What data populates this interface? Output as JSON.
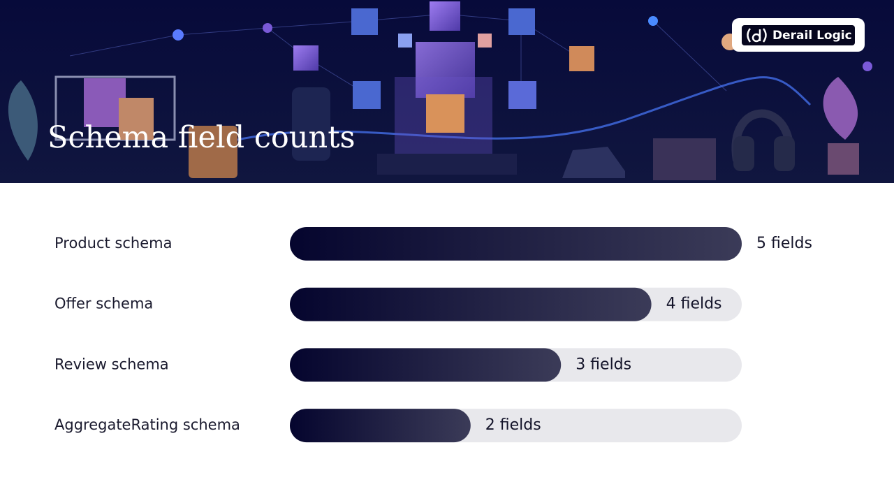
{
  "chart_data": {
    "type": "bar",
    "orientation": "horizontal",
    "title": "Schema field counts",
    "categories": [
      "Product schema",
      "Offer schema",
      "Review schema",
      "AggregateRating schema"
    ],
    "values": [
      5,
      4,
      3,
      2
    ],
    "value_labels": [
      "5 fields",
      "4 fields",
      "3 fields",
      "2 fields"
    ],
    "xlim": [
      0,
      5
    ],
    "color": "#05052e"
  },
  "logo": {
    "text": "Derail Logic"
  }
}
